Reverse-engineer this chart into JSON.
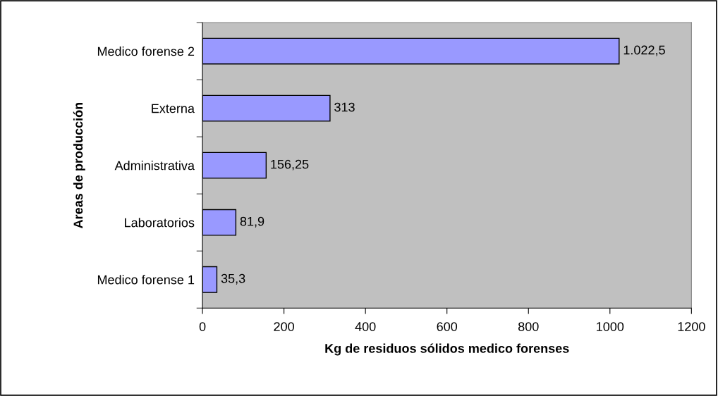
{
  "chart_data": {
    "type": "bar",
    "orientation": "horizontal",
    "categories": [
      "Medico forense 2",
      "Externa",
      "Administrativa",
      "Laboratorios",
      "Medico forense 1"
    ],
    "values": [
      1022.5,
      313,
      156.25,
      81.9,
      35.3
    ],
    "value_labels": [
      "1.022,5",
      "313",
      "156,25",
      "81,9",
      "35,3"
    ],
    "color": "#9999ff",
    "xlabel": "Kg de residuos sólidos medico forenses",
    "ylabel": "Areas de producción",
    "xlim": [
      0,
      1200
    ],
    "xticks": [
      0,
      200,
      400,
      600,
      800,
      1000,
      1200
    ],
    "grid": false
  }
}
